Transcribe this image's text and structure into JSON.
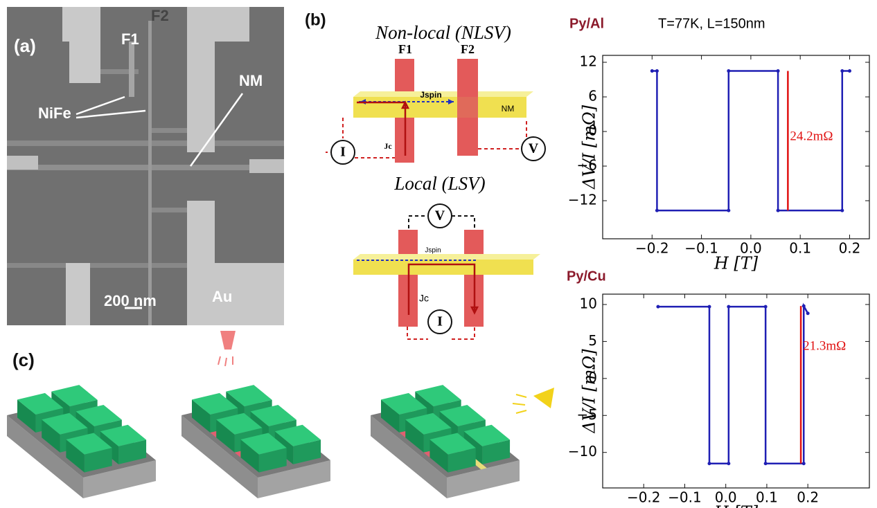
{
  "figure": {
    "panel_a": {
      "label": "(a)",
      "f1": "F1",
      "f2": "F2",
      "nife": "NiFe",
      "nm": "NM",
      "scale": "200 nm",
      "au": "Au"
    },
    "panel_b": {
      "label": "(b)",
      "nonlocal": {
        "title": "Non-local (NLSV)",
        "f1": "F1",
        "f2": "F2",
        "jspin": "Jspin",
        "nm": "NM",
        "current": "I",
        "jc": "Jc",
        "voltage": "V"
      },
      "local": {
        "title": "Local (LSV)",
        "voltage": "V",
        "jspin": "Jspin",
        "jc": "Jc",
        "current": "I"
      }
    },
    "panel_c": {
      "label": "(c)"
    }
  },
  "chart_data": [
    {
      "type": "line",
      "title": "Py/Al",
      "subtitle": "T=77K, L=150nm",
      "title_color": "#8b1a2b",
      "x_label": "H [T]",
      "y_label": "ΔV/I [mΩ]",
      "x": [
        -0.2,
        -0.19,
        -0.19,
        -0.045,
        -0.045,
        0.055,
        0.055,
        0.185,
        0.185,
        0.2
      ],
      "series": [
        {
          "color": "#1f1fb4",
          "values": [
            10.5,
            10.5,
            -13.7,
            -13.7,
            10.5,
            10.5,
            -13.7,
            -13.7,
            10.5,
            10.5
          ]
        }
      ],
      "xlim": [
        -0.3,
        0.24
      ],
      "ylim": [
        -18.6,
        13.2
      ],
      "xticks": [
        {
          "value": -0.2,
          "label": "−0.2"
        },
        {
          "value": -0.1,
          "label": "−0.1"
        },
        {
          "value": 0,
          "label": "0.0"
        },
        0.1,
        0.2
      ],
      "yticks": [
        {
          "value": -12,
          "label": "−12"
        },
        {
          "value": -6,
          "label": "−6"
        },
        0,
        6,
        12
      ],
      "annotation": {
        "text": "24.2mΩ",
        "x": 0.075,
        "y": [
          -13.7,
          10.5
        ],
        "color": "#e01010"
      }
    },
    {
      "type": "line",
      "title": "Py/Cu",
      "title_color": "#8b1a2b",
      "x_label": "H [T]",
      "y_label": "ΔV/I [mΩ]",
      "x": [
        -0.165,
        -0.04,
        -0.04,
        0.007,
        0.007,
        0.097,
        0.097,
        0.19,
        0.19,
        0.2
      ],
      "series": [
        {
          "color": "#1f1fb4",
          "values": [
            9.7,
            9.7,
            -11.5,
            -11.5,
            9.7,
            9.7,
            -11.5,
            -11.5,
            9.8,
            8.8
          ]
        }
      ],
      "xlim": [
        -0.3,
        0.35
      ],
      "ylim": [
        -14.8,
        11.4
      ],
      "xticks": [
        {
          "value": -0.2,
          "label": "−0.2"
        },
        {
          "value": -0.1,
          "label": "−0.1"
        },
        {
          "value": 0,
          "label": "0.0"
        },
        0.1,
        0.2
      ],
      "yticks": [
        {
          "value": -10,
          "label": "−10"
        },
        {
          "value": -5,
          "label": "−5"
        },
        0,
        5,
        10
      ],
      "annotation": {
        "text": "21.3mΩ",
        "x": 0.183,
        "y": [
          -11.5,
          9.8
        ],
        "color": "#e01010"
      }
    }
  ]
}
